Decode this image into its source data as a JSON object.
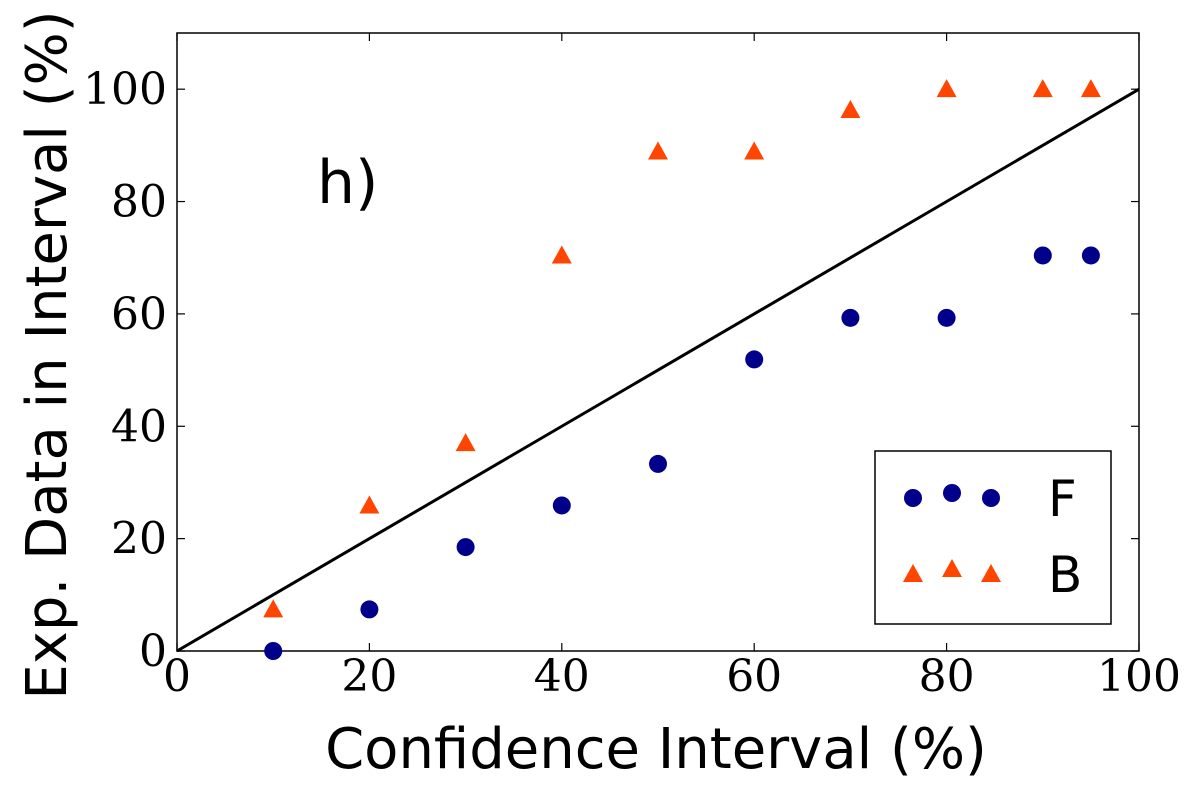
{
  "chart_data": {
    "type": "scatter",
    "title": "",
    "xlabel": "Confidence Interval (%)",
    "ylabel": "Exp. Data in Interval (%)",
    "annotation": "h)",
    "xlim": [
      0,
      100
    ],
    "ylim": [
      0,
      110
    ],
    "xticks": [
      0,
      20,
      40,
      60,
      80,
      100
    ],
    "yticks": [
      0,
      20,
      40,
      60,
      80,
      100
    ],
    "xtick_labels": [
      "0",
      "20",
      "40",
      "60",
      "80",
      "100"
    ],
    "ytick_labels": [
      "0",
      "20",
      "40",
      "60",
      "80",
      "100"
    ],
    "legend_position": "bottom-right",
    "reference_line": {
      "x": [
        0,
        100
      ],
      "y": [
        0,
        100
      ],
      "color": "#000000"
    },
    "series": [
      {
        "name": "F",
        "marker": "circle",
        "color": "#00008b",
        "x": [
          10,
          20,
          30,
          40,
          50,
          60,
          70,
          80,
          90,
          95
        ],
        "y": [
          0,
          7.4,
          18.5,
          25.9,
          33.3,
          51.9,
          59.3,
          59.3,
          70.4,
          70.4
        ]
      },
      {
        "name": "B",
        "marker": "triangle",
        "color": "#ff4500",
        "x": [
          10,
          20,
          30,
          40,
          50,
          60,
          70,
          80,
          90,
          95
        ],
        "y": [
          7.4,
          25.9,
          37.0,
          70.4,
          88.9,
          88.9,
          96.3,
          100,
          100,
          100
        ]
      }
    ]
  }
}
